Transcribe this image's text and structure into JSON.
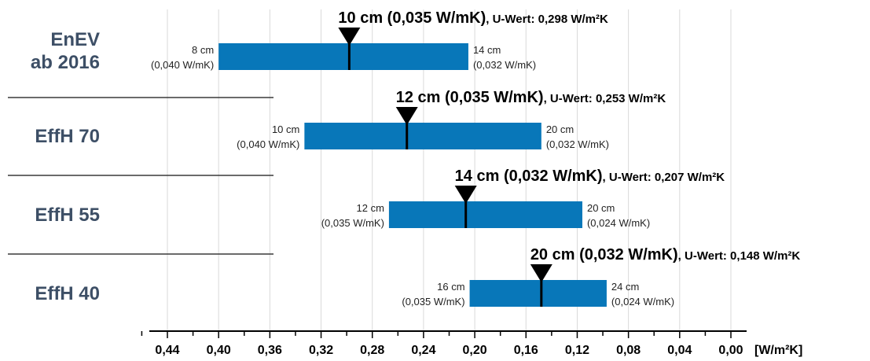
{
  "chart_data": {
    "type": "bar",
    "orientation": "horizontal-range",
    "x_axis": {
      "unit": "[W/m²K]",
      "range": [
        0.46,
        0.0
      ],
      "reversed": true,
      "ticks": [
        "0,44",
        "0,40",
        "0,36",
        "0,32",
        "0,28",
        "0,24",
        "0,20",
        "0,16",
        "0,12",
        "0,08",
        "0,04",
        "0,00"
      ],
      "tick_values": [
        0.44,
        0.4,
        0.36,
        0.32,
        0.28,
        0.24,
        0.2,
        0.16,
        0.12,
        0.08,
        0.04,
        0.0
      ]
    },
    "grid": true,
    "bar_color": "#0877b9",
    "rows": [
      {
        "category": [
          "EnEV",
          "ab 2016"
        ],
        "start": 0.4,
        "end": 0.205,
        "marker": 0.298,
        "left_label": [
          "8 cm",
          "(0,040 W/mK)"
        ],
        "right_label": [
          "14 cm",
          "(0,032 W/mK)"
        ],
        "annotation_main": "10 cm (0,035 W/mK)",
        "annotation_sub": ", U-Wert: 0,298 W/m²K"
      },
      {
        "category": [
          "EffH 70"
        ],
        "start": 0.333,
        "end": 0.148,
        "marker": 0.253,
        "left_label": [
          "10 cm",
          "(0,040 W/mK)"
        ],
        "right_label": [
          "20 cm",
          "(0,032 W/mK)"
        ],
        "annotation_main": "12 cm (0,035 W/mK)",
        "annotation_sub": ", U-Wert: 0,253 W/m²K"
      },
      {
        "category": [
          "EffH 55"
        ],
        "start": 0.267,
        "end": 0.116,
        "marker": 0.207,
        "left_label": [
          "12 cm",
          "(0,035 W/mK)"
        ],
        "right_label": [
          "20 cm",
          "(0,024 W/mK)"
        ],
        "annotation_main": "14 cm (0,032 W/mK)",
        "annotation_sub": ", U-Wert: 0,207 W/m²K"
      },
      {
        "category": [
          "EffH 40"
        ],
        "start": 0.204,
        "end": 0.097,
        "marker": 0.148,
        "left_label": [
          "16 cm",
          "(0,035 W/mK)"
        ],
        "right_label": [
          "24 cm",
          "(0,024 W/mK)"
        ],
        "annotation_main": "20 cm (0,032 W/mK)",
        "annotation_sub": ", U-Wert: 0,148 W/m²K"
      }
    ]
  }
}
